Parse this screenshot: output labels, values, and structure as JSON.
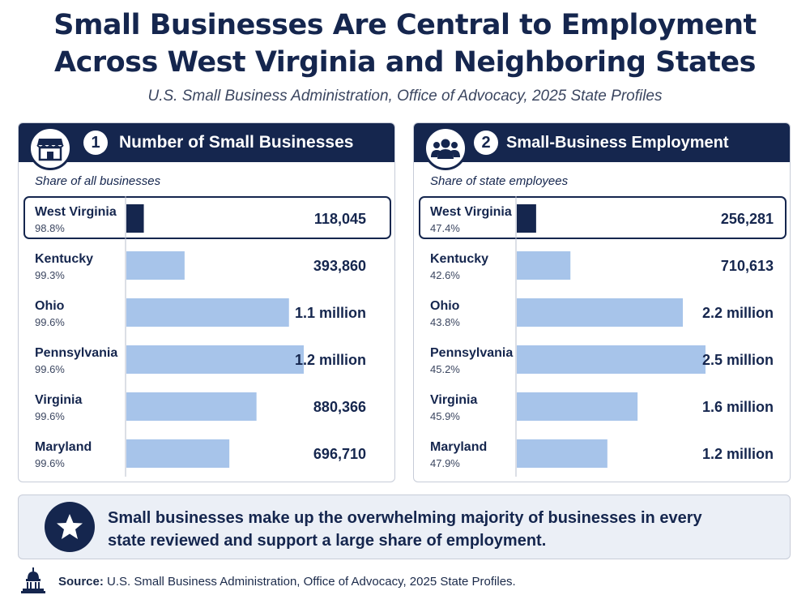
{
  "title_line1": "Small Businesses Are Central to Employment",
  "title_line2": "Across West Virginia and Neighboring States",
  "subtitle": "U.S. Small Business Administration, Office of Advocacy, 2025 State Profiles",
  "colors": {
    "navy": "#15264e",
    "bar_highlight": "#15264e",
    "bar": "#a7c4ea"
  },
  "icons": {
    "panel1": "storefront-icon",
    "panel2": "group-people-icon",
    "callout": "star-icon",
    "source": "capitol-building-icon"
  },
  "chart_data": [
    {
      "type": "bar",
      "orientation": "horizontal",
      "panel_number": "1",
      "title": "Number of Small Businesses",
      "subtitle": "Share of all businesses",
      "categories": [
        "West Virginia",
        "Kentucky",
        "Ohio",
        "Pennsylvania",
        "Virginia",
        "Maryland"
      ],
      "shares": [
        "98.8%",
        "99.3%",
        "99.6%",
        "99.6%",
        "99.6%",
        "99.6%"
      ],
      "values": [
        118045,
        393860,
        1100000,
        1200000,
        880366,
        696710
      ],
      "value_labels": [
        "118,045",
        "393,860",
        "1.1 million",
        "1.2 million",
        "880,366",
        "696,710"
      ],
      "highlight": "West Virginia"
    },
    {
      "type": "bar",
      "orientation": "horizontal",
      "panel_number": "2",
      "title": "Small-Business Employment",
      "subtitle": "Share of state employees",
      "categories": [
        "West Virginia",
        "Kentucky",
        "Ohio",
        "Pennsylvania",
        "Virginia",
        "Maryland"
      ],
      "shares": [
        "47.4%",
        "42.6%",
        "43.8%",
        "45.2%",
        "45.9%",
        "47.9%"
      ],
      "values": [
        256281,
        710613,
        2200000,
        2500000,
        1600000,
        1200000
      ],
      "value_labels": [
        "256,281",
        "710,613",
        "2.2 million",
        "2.5 million",
        "1.6 million",
        "1.2 million"
      ],
      "highlight": "West Virginia"
    }
  ],
  "callout": {
    "line1": "Small businesses make up the overwhelming majority of businesses in every",
    "line2": "state reviewed and support a large share of employment."
  },
  "source": {
    "label": "Source:",
    "text": "U.S. Small Business Administration, Office of Advocacy, 2025 State Profiles."
  }
}
